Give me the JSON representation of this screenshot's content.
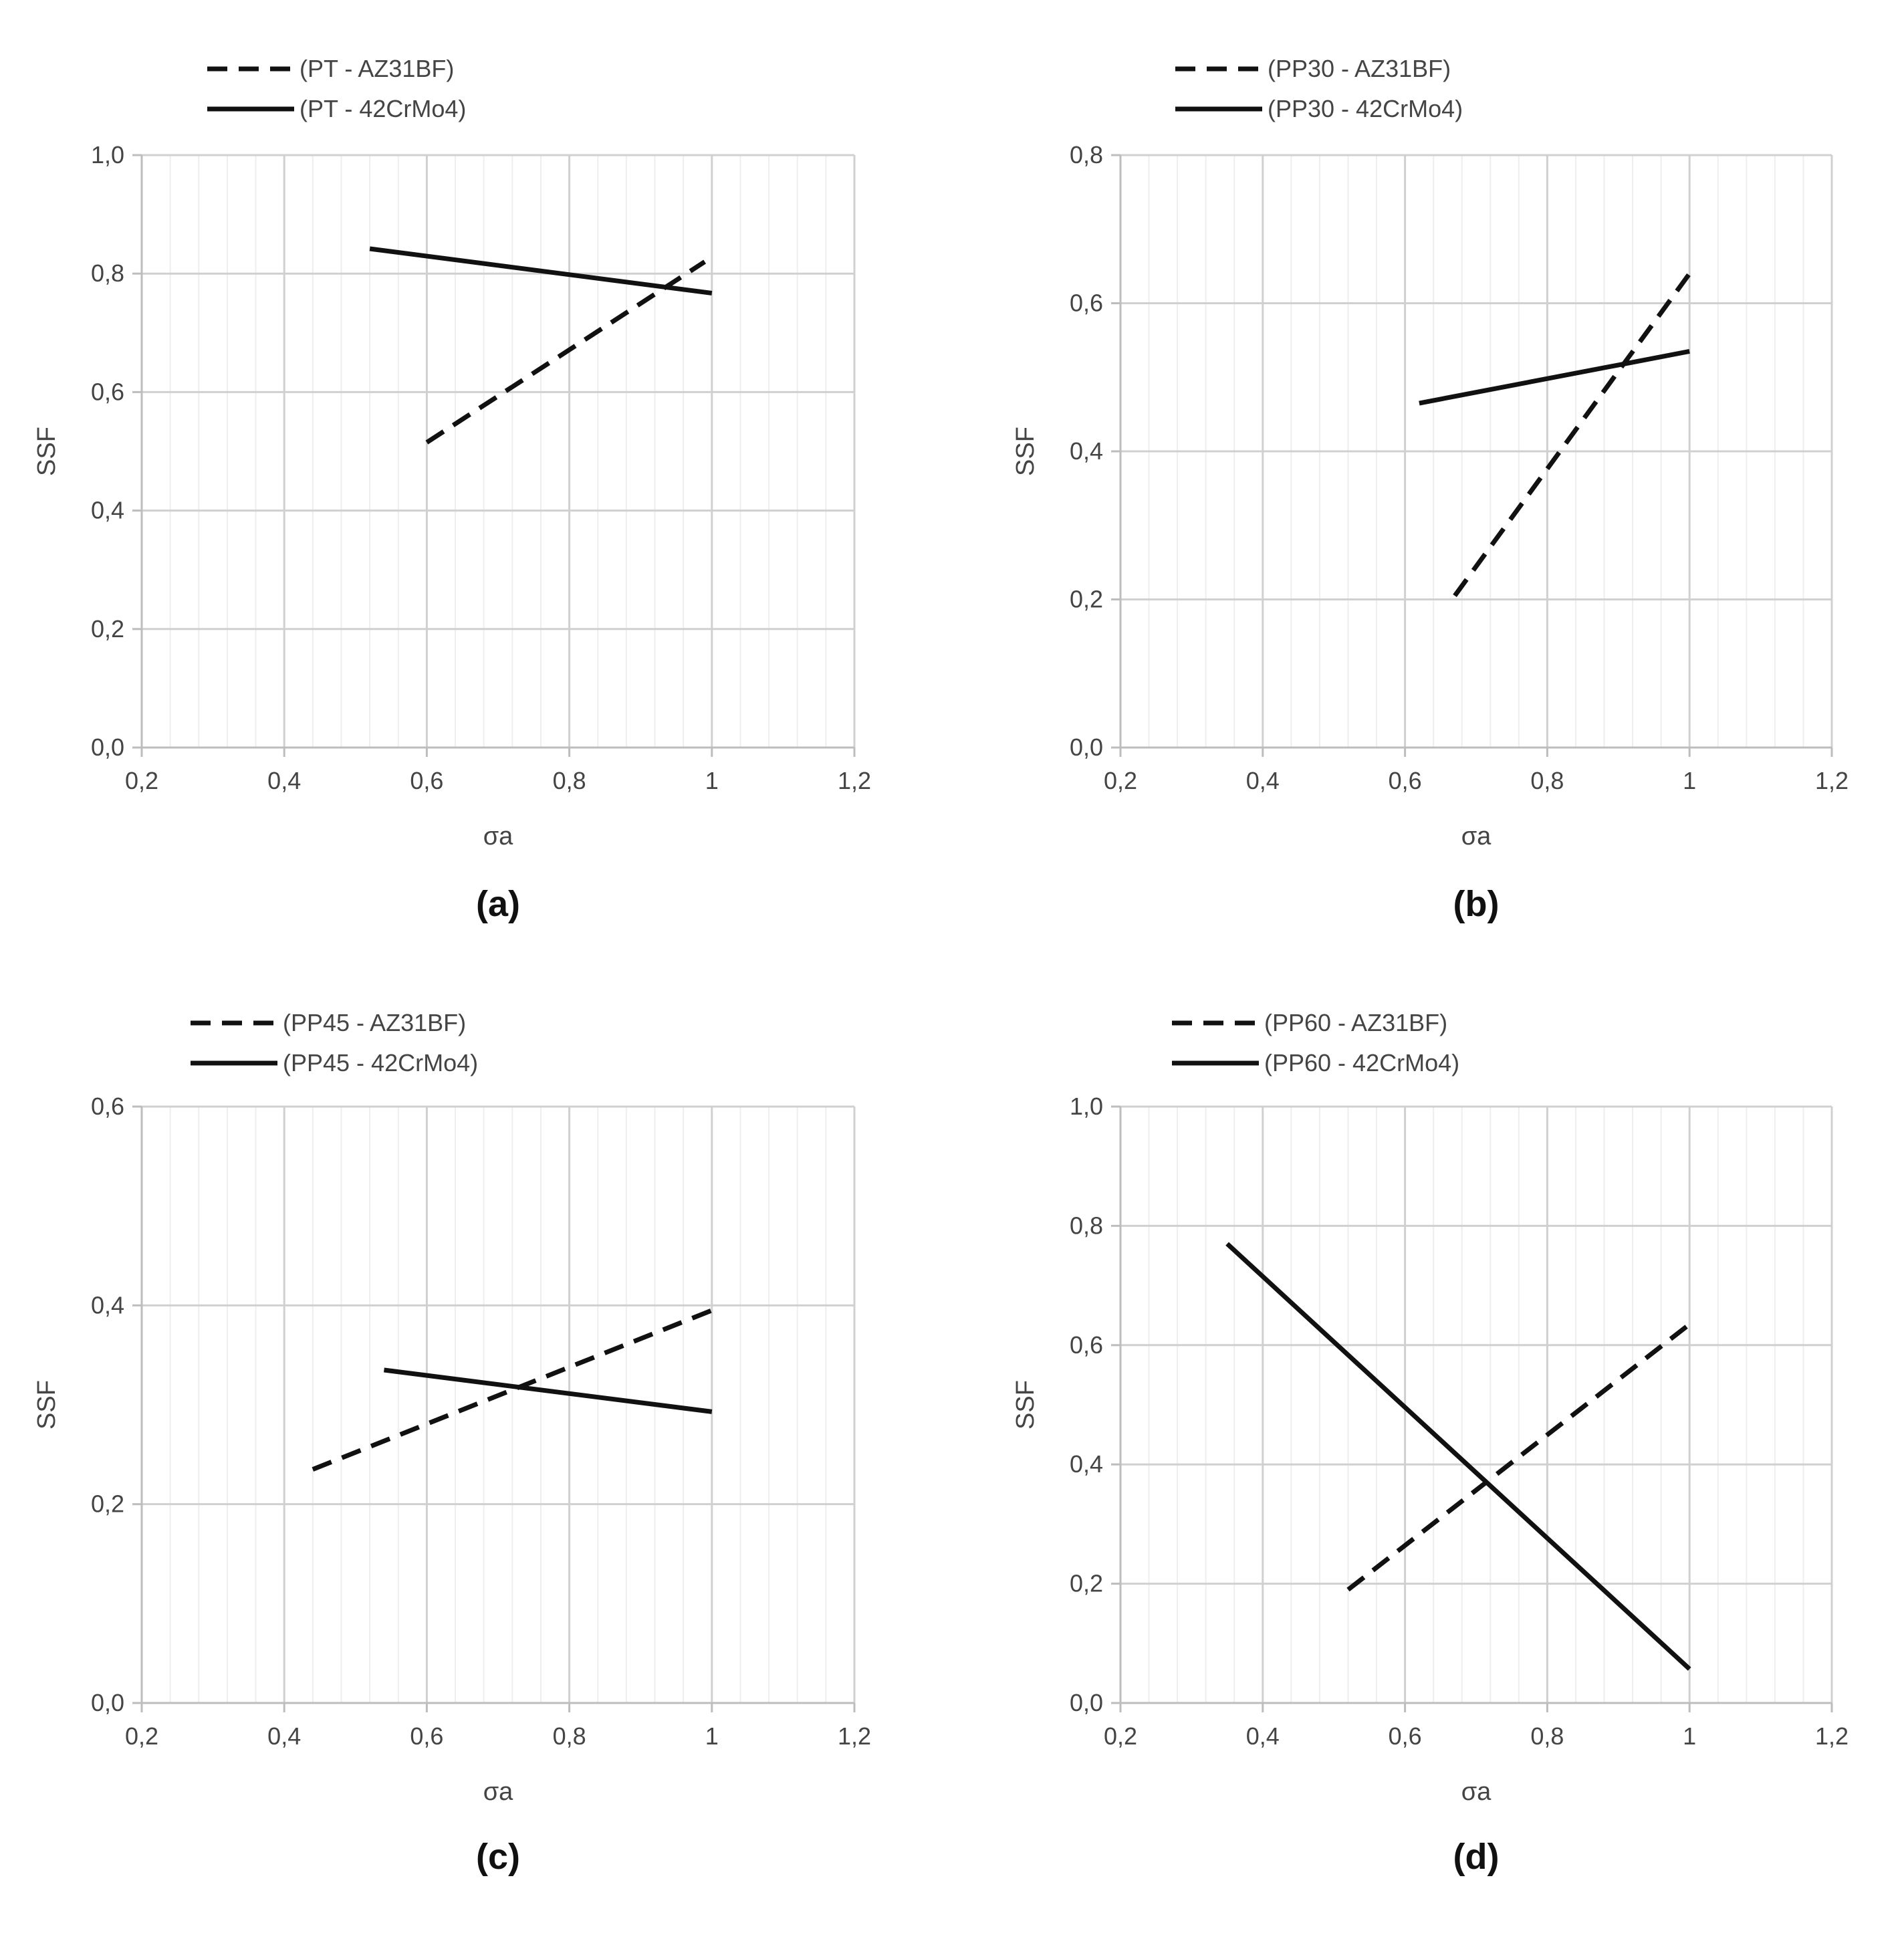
{
  "figure": {
    "panels": [
      {
        "id": "a",
        "label": "(a)",
        "legend": [
          "(PT - AZ31BF)",
          "(PT - 42CrMo4)"
        ]
      },
      {
        "id": "b",
        "label": "(b)",
        "legend": [
          "(PP30 - AZ31BF)",
          "(PP30 - 42CrMo4)"
        ]
      },
      {
        "id": "c",
        "label": "(c)",
        "legend": [
          "(PP45 - AZ31BF)",
          "(PP45 - 42CrMo4)"
        ]
      },
      {
        "id": "d",
        "label": "(d)",
        "legend": [
          "(PP60 - AZ31BF)",
          "(PP60 - 42CrMo4)"
        ]
      }
    ]
  },
  "chart_data": [
    {
      "panel": "a",
      "type": "line",
      "xlabel": "σa",
      "ylabel": "SSF",
      "xlim": [
        0.2,
        1.2
      ],
      "ylim": [
        0.0,
        1.0
      ],
      "xticks": [
        "0,2",
        "0,4",
        "0,6",
        "0,8",
        "1",
        "1,2"
      ],
      "yticks": [
        "0,0",
        "0,2",
        "0,4",
        "0,6",
        "0,8",
        "1,0"
      ],
      "ytick_values": [
        0.0,
        0.2,
        0.4,
        0.6,
        0.8,
        1.0
      ],
      "grid": true,
      "legend_position": "top-left",
      "series": [
        {
          "name": "(PT - AZ31BF)",
          "style": "dashed",
          "x": [
            0.6,
            0.99
          ],
          "y": [
            0.515,
            0.82
          ]
        },
        {
          "name": "(PT - 42CrMo4)",
          "style": "solid",
          "x": [
            0.52,
            1.0
          ],
          "y": [
            0.842,
            0.767
          ]
        }
      ]
    },
    {
      "panel": "b",
      "type": "line",
      "xlabel": "σa",
      "ylabel": "SSF",
      "xlim": [
        0.2,
        1.2
      ],
      "ylim": [
        0.0,
        0.8
      ],
      "xticks": [
        "0,2",
        "0,4",
        "0,6",
        "0,8",
        "1",
        "1,2"
      ],
      "yticks": [
        "0,0",
        "0,2",
        "0,4",
        "0,6",
        "0,8"
      ],
      "ytick_values": [
        0.0,
        0.2,
        0.4,
        0.6,
        0.8
      ],
      "grid": true,
      "legend_position": "top-left",
      "series": [
        {
          "name": "(PP30 - AZ31BF)",
          "style": "dashed",
          "x": [
            0.67,
            1.0
          ],
          "y": [
            0.205,
            0.64
          ]
        },
        {
          "name": "(PP30 - 42CrMo4)",
          "style": "solid",
          "x": [
            0.62,
            1.0
          ],
          "y": [
            0.465,
            0.535
          ]
        }
      ]
    },
    {
      "panel": "c",
      "type": "line",
      "xlabel": "σa",
      "ylabel": "SSF",
      "xlim": [
        0.2,
        1.2
      ],
      "ylim": [
        0.0,
        0.6
      ],
      "xticks": [
        "0,2",
        "0,4",
        "0,6",
        "0,8",
        "1",
        "1,2"
      ],
      "yticks": [
        "0,0",
        "0,2",
        "0,4",
        "0,6"
      ],
      "ytick_values": [
        0.0,
        0.2,
        0.4,
        0.6
      ],
      "grid": true,
      "legend_position": "top-left",
      "series": [
        {
          "name": "(PP45 - AZ31BF)",
          "style": "dashed",
          "x": [
            0.44,
            1.0
          ],
          "y": [
            0.235,
            0.395
          ]
        },
        {
          "name": "(PP45 - 42CrMo4)",
          "style": "solid",
          "x": [
            0.54,
            1.0
          ],
          "y": [
            0.335,
            0.293
          ]
        }
      ]
    },
    {
      "panel": "d",
      "type": "line",
      "xlabel": "σa",
      "ylabel": "SSF",
      "xlim": [
        0.2,
        1.2
      ],
      "ylim": [
        0.0,
        1.0
      ],
      "xticks": [
        "0,2",
        "0,4",
        "0,6",
        "0,8",
        "1",
        "1,2"
      ],
      "yticks": [
        "0,0",
        "0,2",
        "0,4",
        "0,6",
        "0,8",
        "1,0"
      ],
      "ytick_values": [
        0.0,
        0.2,
        0.4,
        0.6,
        0.8,
        1.0
      ],
      "grid": true,
      "legend_position": "top-left",
      "series": [
        {
          "name": "(PP60 - AZ31BF)",
          "style": "dashed",
          "x": [
            0.52,
            1.0
          ],
          "y": [
            0.19,
            0.635
          ]
        },
        {
          "name": "(PP60 - 42CrMo4)",
          "style": "solid",
          "x": [
            0.35,
            1.0
          ],
          "y": [
            0.77,
            0.057
          ]
        }
      ]
    }
  ]
}
